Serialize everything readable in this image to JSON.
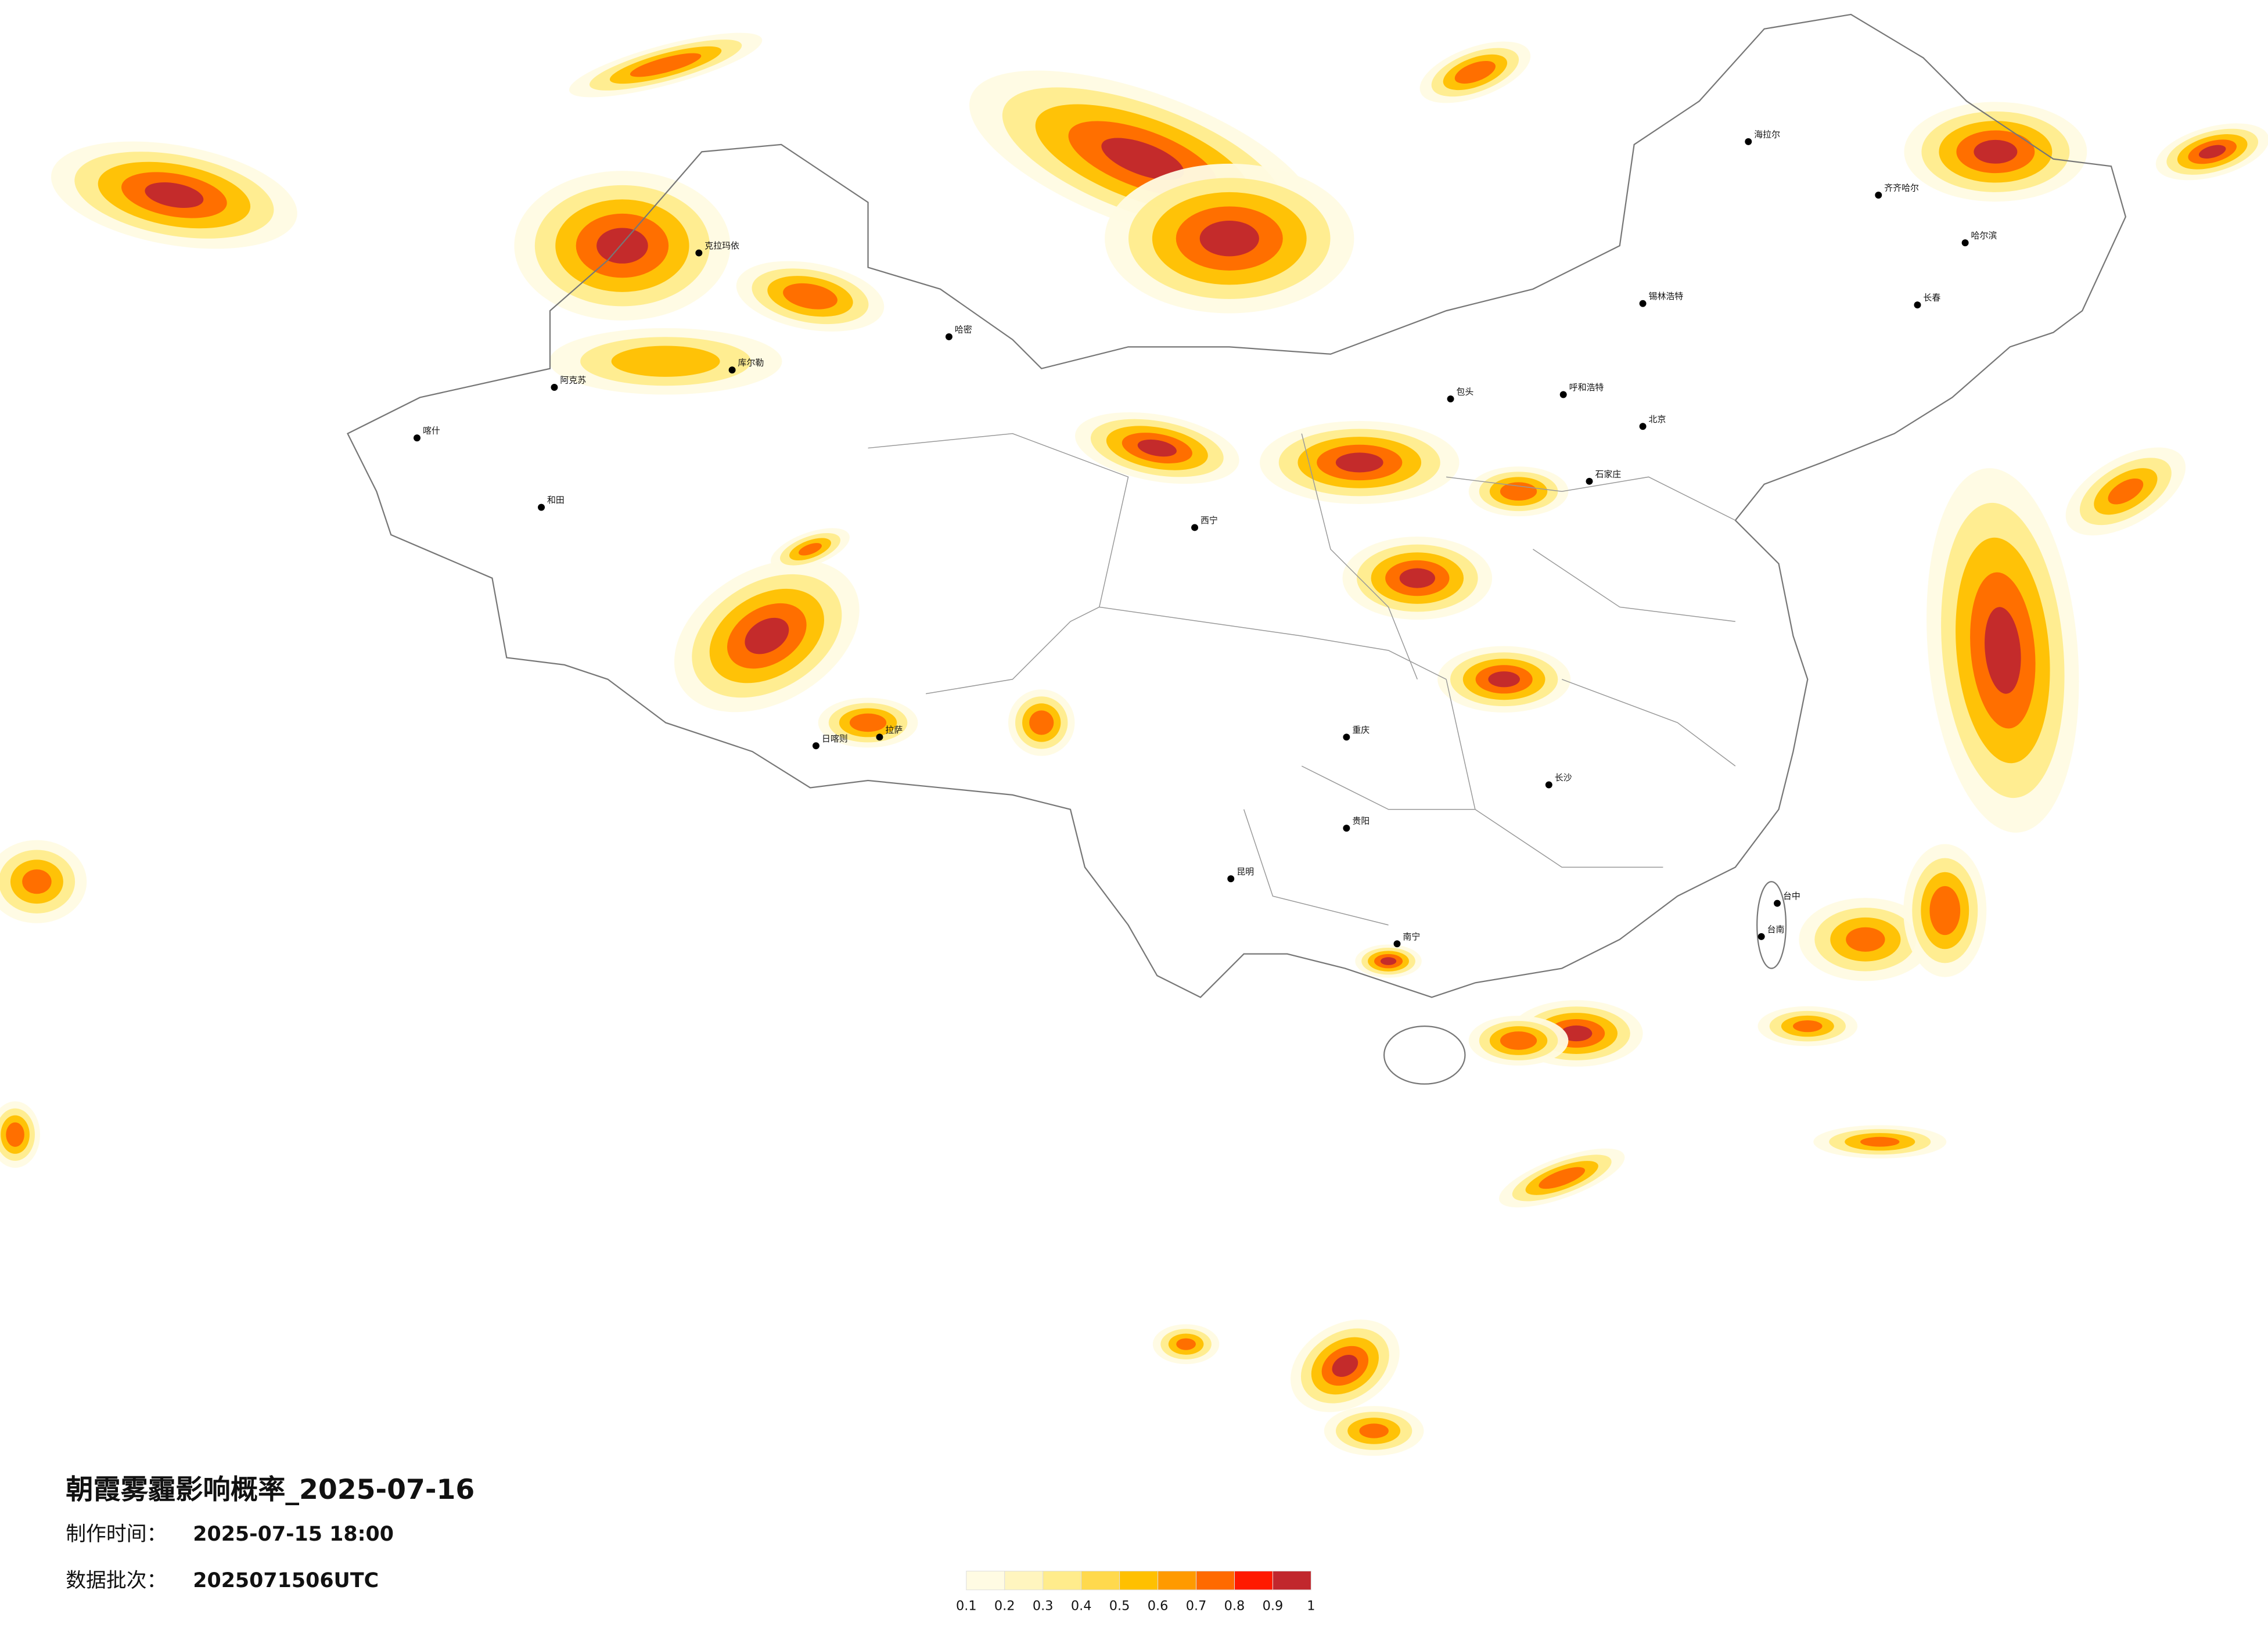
{
  "title": "朝霞雾霾影响概率_2025-07-16",
  "production_time": {
    "label": "制作时间：",
    "value": "2025-07-15 18:00"
  },
  "data_batch": {
    "label": "数据批次：",
    "value": "2025071506UTC"
  },
  "legend": {
    "ticks": [
      0.1,
      0.2,
      0.3,
      0.4,
      0.5,
      0.6,
      0.7,
      0.8,
      0.9,
      1
    ],
    "colors": [
      "#fffbe3",
      "#fff5bf",
      "#ffec8c",
      "#ffd94d",
      "#ffc000",
      "#ff9a00",
      "#ff6a00",
      "#ff1a00",
      "#c1272d"
    ]
  },
  "cities": [
    "克拉玛依",
    "阿克苏",
    "喀什",
    "和田",
    "哈密",
    "库尔勒",
    "拉萨",
    "日喀则",
    "西宁",
    "呼和浩特",
    "包头",
    "北京",
    "石家庄",
    "长沙",
    "南宁",
    "昆明",
    "贵阳",
    "重庆",
    "哈尔滨",
    "齐齐哈尔",
    "长春",
    "海拉尔",
    "锡林浩特",
    "台中",
    "台南"
  ]
}
